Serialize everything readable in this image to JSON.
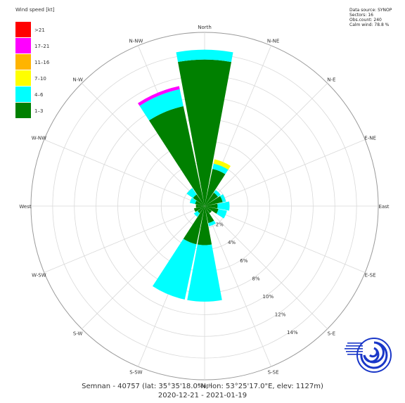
{
  "chart_data": {
    "type": "windrose",
    "legend": {
      "title": "Wind speed [kt]",
      "placement": "top-left",
      "items": [
        {
          "label": ">21",
          "color": "#ff0000"
        },
        {
          "label": "17–21",
          "color": "#ff00ff"
        },
        {
          "label": "11–16",
          "color": "#ffb400"
        },
        {
          "label": "7–10",
          "color": "#ffff00"
        },
        {
          "label": "4–6",
          "color": "#00ffff"
        },
        {
          "label": "1–3",
          "color": "#008000"
        }
      ]
    },
    "info_lines": [
      "Data source: SYNOP",
      "Sectors: 16",
      "Obs.count: 240",
      "Calm wind: 78.8 %"
    ],
    "directions": [
      "North",
      "N-NE",
      "N-E",
      "E-NE",
      "East",
      "E-SE",
      "S-E",
      "S-SE",
      "South",
      "S-SW",
      "S-W",
      "W-SW",
      "West",
      "W-NW",
      "N-W",
      "N-NW"
    ],
    "ring_labels": [
      "2%",
      "4%",
      "6%",
      "8%",
      "10%",
      "12%",
      "14%"
    ],
    "rmax": 16,
    "sector_half_width_deg": 10.5,
    "sectors": [
      {
        "dir": "North",
        "bands": [
          13.5,
          0.9,
          0,
          0,
          0,
          0
        ]
      },
      {
        "dir": "N-NE",
        "bands": [
          3.5,
          0.5,
          0.4,
          0,
          0,
          0
        ]
      },
      {
        "dir": "N-E",
        "bands": [
          1.5,
          0.3,
          0,
          0,
          0,
          0
        ]
      },
      {
        "dir": "E-NE",
        "bands": [
          1.7,
          0.3,
          0,
          0,
          0,
          0
        ]
      },
      {
        "dir": "East",
        "bands": [
          1.2,
          1.1,
          0,
          0,
          0,
          0
        ]
      },
      {
        "dir": "E-SE",
        "bands": [
          1.3,
          0.8,
          0,
          0,
          0,
          0
        ]
      },
      {
        "dir": "S-E",
        "bands": [
          0.8,
          0,
          0,
          0,
          0,
          0
        ]
      },
      {
        "dir": "S-SE",
        "bands": [
          1.6,
          0.3,
          0,
          0,
          0,
          0
        ]
      },
      {
        "dir": "South",
        "bands": [
          3.6,
          5.2,
          0,
          0,
          0,
          0
        ]
      },
      {
        "dir": "S-SW",
        "bands": [
          3.6,
          5.2,
          0,
          0,
          0,
          0
        ]
      },
      {
        "dir": "S-W",
        "bands": [
          0.8,
          0.4,
          0,
          0,
          0,
          0
        ]
      },
      {
        "dir": "W-SW",
        "bands": [
          1.0,
          0,
          0,
          0,
          0,
          0
        ]
      },
      {
        "dir": "West",
        "bands": [
          0.8,
          0,
          0,
          0,
          0,
          0
        ]
      },
      {
        "dir": "W-NW",
        "bands": [
          0.9,
          0.5,
          0,
          0,
          0,
          0
        ]
      },
      {
        "dir": "N-W",
        "bands": [
          1.3,
          0.7,
          0,
          0,
          0,
          0
        ]
      },
      {
        "dir": "N-NW",
        "bands": [
          9.4,
          1.6,
          0,
          0,
          0.3,
          0
        ]
      }
    ],
    "caption_line1": "Semnan - 40757 (lat: 35°35'18.0\"N, lon: 53°25'17.0\"E, elev: 1127m)",
    "caption_line2": "2020-12-21 - 2021-01-19"
  },
  "logo_icon": "meteorological-organization-logo-icon"
}
